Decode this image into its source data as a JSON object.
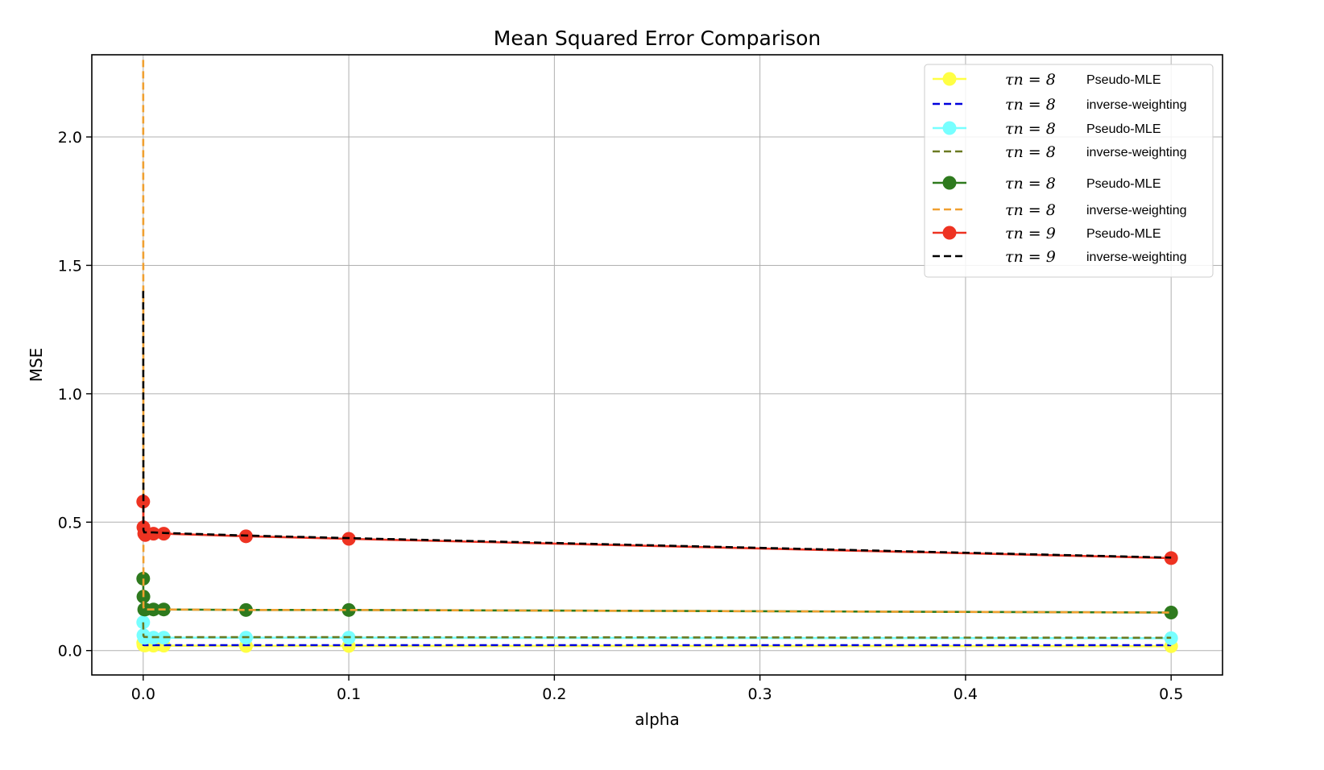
{
  "chart_data": {
    "type": "line",
    "title": "Mean Squared Error Comparison",
    "xlabel": "alpha",
    "ylabel": "MSE",
    "xlim": [
      -0.025,
      0.525
    ],
    "ylim": [
      -0.095,
      2.32
    ],
    "xticks": [
      0.0,
      0.1,
      0.2,
      0.3,
      0.4,
      0.5
    ],
    "xtick_labels": [
      "0.0",
      "0.1",
      "0.2",
      "0.3",
      "0.4",
      "0.5"
    ],
    "yticks": [
      0.0,
      0.5,
      1.0,
      1.5,
      2.0
    ],
    "ytick_labels": [
      "0.0",
      "0.5",
      "1.0",
      "1.5",
      "2.0"
    ],
    "grid": true,
    "legend_position": "top-right",
    "series": [
      {
        "name": "Pseudo-MLE",
        "tau": "τn = 8",
        "style": "solid-marker",
        "color": "#ffff44",
        "x": [
          0.0,
          0.0001,
          0.0005,
          0.001,
          0.005,
          0.01,
          0.05,
          0.1,
          0.5
        ],
        "y": [
          0.03,
          0.022,
          0.02,
          0.02,
          0.019,
          0.019,
          0.018,
          0.018,
          0.017
        ]
      },
      {
        "name": "inverse-weighting",
        "tau": "τn = 8",
        "style": "dashed",
        "color": "#0000dd",
        "x": [
          0.0,
          0.0001,
          0.0005,
          0.001,
          0.005,
          0.01,
          0.05,
          0.1,
          0.5
        ],
        "y": [
          0.03,
          0.022,
          0.021,
          0.021,
          0.021,
          0.021,
          0.021,
          0.021,
          0.021
        ]
      },
      {
        "name": "Pseudo-MLE",
        "tau": "τn = 8",
        "style": "solid-marker",
        "color": "#77ffff",
        "x": [
          0.0,
          0.0001,
          0.0005,
          0.001,
          0.005,
          0.01,
          0.05,
          0.1,
          0.5
        ],
        "y": [
          0.11,
          0.06,
          0.05,
          0.05,
          0.05,
          0.05,
          0.05,
          0.05,
          0.048
        ]
      },
      {
        "name": "inverse-weighting",
        "tau": "τn = 8",
        "style": "dashed",
        "color": "#6b7a22",
        "x": [
          0.0,
          0.0001,
          0.0005,
          0.001,
          0.005,
          0.01,
          0.05,
          0.1,
          0.5
        ],
        "y": [
          0.11,
          0.058,
          0.053,
          0.053,
          0.052,
          0.052,
          0.052,
          0.052,
          0.05
        ]
      },
      {
        "name": "Pseudo-MLE",
        "tau": "τn = 8",
        "style": "solid-marker",
        "color": "#2e7a1e",
        "x": [
          0.0,
          0.0001,
          0.0005,
          0.001,
          0.005,
          0.01,
          0.05,
          0.1,
          0.5
        ],
        "y": [
          0.28,
          0.21,
          0.16,
          0.16,
          0.16,
          0.16,
          0.158,
          0.158,
          0.148
        ]
      },
      {
        "name": "inverse-weighting",
        "tau": "τn = 8",
        "style": "dashed",
        "color": "#f0a030",
        "x": [
          0.0,
          0.0001,
          0.0005,
          0.001,
          0.005,
          0.01,
          0.05,
          0.1,
          0.5
        ],
        "y": [
          2.3,
          0.17,
          0.16,
          0.16,
          0.16,
          0.16,
          0.158,
          0.158,
          0.148
        ]
      },
      {
        "name": "Pseudo-MLE",
        "tau": "τn = 9",
        "style": "solid-marker",
        "color": "#ee3322",
        "x": [
          0.0,
          0.0001,
          0.0005,
          0.001,
          0.005,
          0.01,
          0.05,
          0.1,
          0.5
        ],
        "y": [
          0.58,
          0.48,
          0.455,
          0.45,
          0.455,
          0.455,
          0.445,
          0.435,
          0.36
        ]
      },
      {
        "name": "inverse-weighting",
        "tau": "τn = 9",
        "style": "dashed",
        "color": "#000000",
        "x": [
          0.0,
          0.0001,
          0.0005,
          0.001,
          0.005,
          0.01,
          0.05,
          0.1,
          0.5
        ],
        "y": [
          1.4,
          0.47,
          0.46,
          0.46,
          0.46,
          0.458,
          0.448,
          0.438,
          0.362
        ]
      }
    ]
  }
}
